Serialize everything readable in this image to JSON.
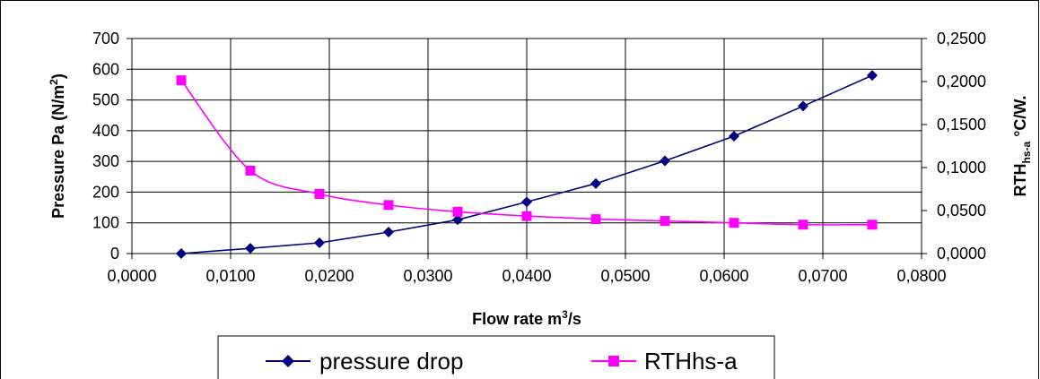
{
  "chart_data": {
    "type": "line",
    "x_axis": {
      "label_main": "Flow rate m",
      "label_sup": "3",
      "label_tail": "/s",
      "range": [
        0,
        0.08
      ],
      "ticks": [
        "0,0000",
        "0,0100",
        "0,0200",
        "0,0300",
        "0,0400",
        "0,0500",
        "0,0600",
        "0,0700",
        "0,0800"
      ]
    },
    "y_left": {
      "label_main": "Pressure Pa (N/m",
      "label_sup": "2",
      "label_tail": ")",
      "range": [
        0,
        700
      ],
      "ticks": [
        "0",
        "100",
        "200",
        "300",
        "400",
        "500",
        "600",
        "700"
      ]
    },
    "y_right": {
      "label_main": "RTH",
      "label_sub": "hs-a",
      "label_tail": " °C/W.",
      "range": [
        0,
        0.25
      ],
      "ticks": [
        "0,0000",
        "0,0500",
        "0,1000",
        "0,1500",
        "0,2000",
        "0,2500"
      ]
    },
    "grid": true,
    "legend_position": "bottom",
    "series": [
      {
        "name": "pressure drop",
        "axis": "left",
        "color": "#000080",
        "marker": "diamond",
        "x": [
          0.005,
          0.012,
          0.019,
          0.026,
          0.033,
          0.04,
          0.047,
          0.054,
          0.061,
          0.068,
          0.075
        ],
        "y": [
          0,
          17,
          35,
          70,
          110,
          168,
          228,
          302,
          382,
          480,
          580
        ]
      },
      {
        "name": "RTHhs-a",
        "axis": "right",
        "color": "#ff00ff",
        "marker": "square",
        "x": [
          0.005,
          0.012,
          0.019,
          0.026,
          0.033,
          0.04,
          0.047,
          0.054,
          0.061,
          0.068,
          0.075
        ],
        "y": [
          0.2014,
          0.0964,
          0.0693,
          0.0564,
          0.0486,
          0.0436,
          0.04,
          0.0379,
          0.0357,
          0.0336,
          0.0336
        ]
      }
    ]
  }
}
